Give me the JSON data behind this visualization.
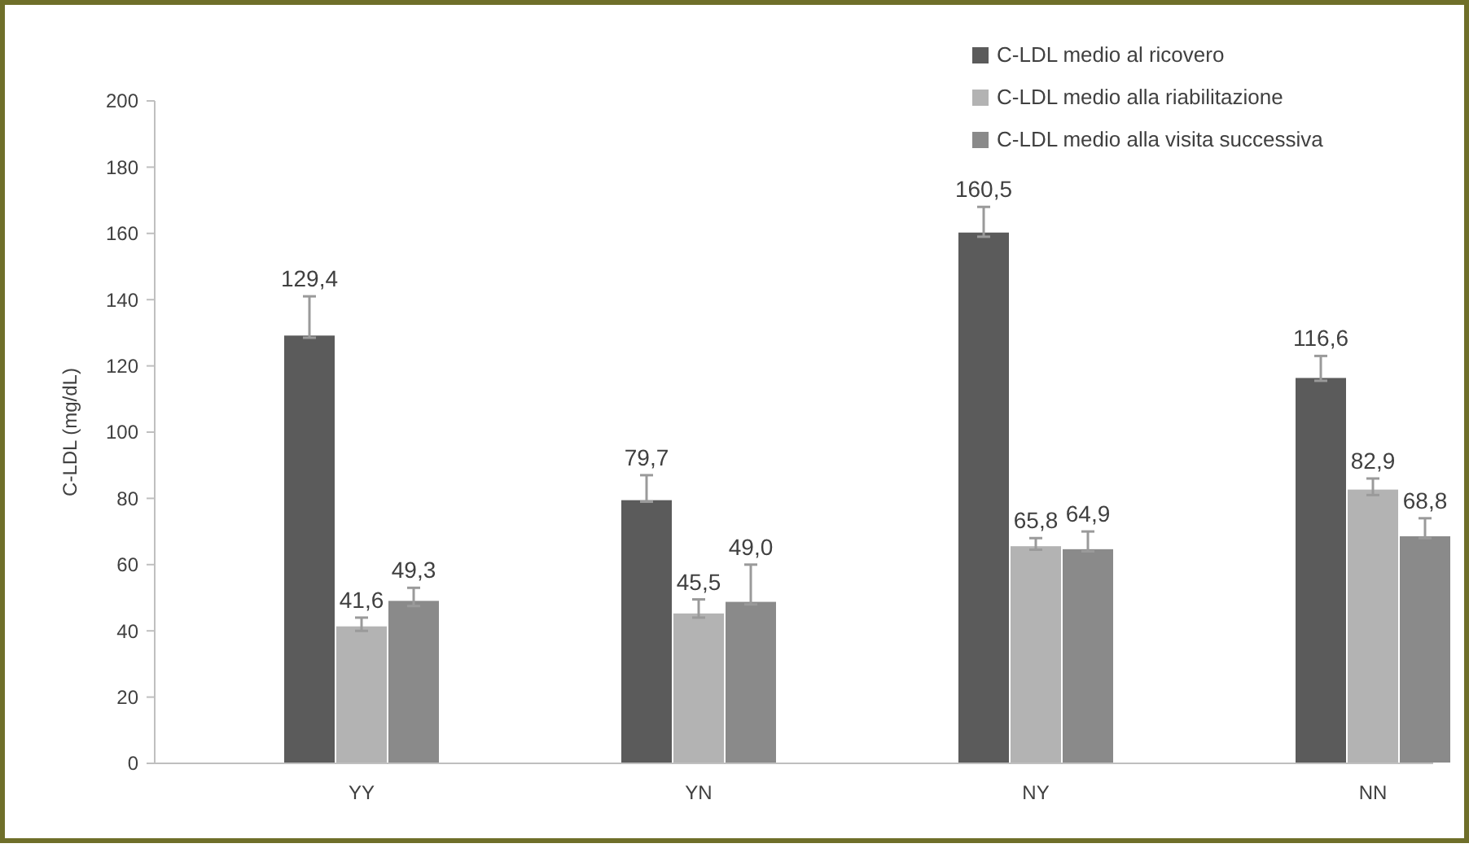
{
  "chart_data": {
    "type": "bar",
    "ylabel": "C-LDL (mg/dL)",
    "categories": [
      "YY",
      "YN",
      "NY",
      "NN"
    ],
    "ylim": [
      0,
      200
    ],
    "yticks": [
      0,
      20,
      40,
      60,
      80,
      100,
      120,
      140,
      160,
      180,
      200
    ],
    "grid": false,
    "legend": "top right",
    "series": [
      {
        "name": "C-LDL medio al ricovero",
        "color": "#5b5b5b",
        "values": [
          129.4,
          79.7,
          160.5,
          116.6
        ],
        "value_labels": [
          "129,4",
          "79,7",
          "160,5",
          "116,6"
        ],
        "errors": [
          [
            128.5,
            141
          ],
          [
            79,
            87
          ],
          [
            159,
            168
          ],
          [
            115.5,
            123
          ]
        ]
      },
      {
        "name": "C-LDL medio alla riabilitazione",
        "color": "#b3b3b3",
        "values": [
          41.6,
          45.5,
          65.8,
          82.9
        ],
        "value_labels": [
          "41,6",
          "45,5",
          "65,8",
          "82,9"
        ],
        "errors": [
          [
            40,
            44
          ],
          [
            44,
            49.5
          ],
          [
            64.5,
            68
          ],
          [
            81,
            86
          ]
        ]
      },
      {
        "name": "C-LDL medio alla visita successiva",
        "color": "#8a8a8a",
        "values": [
          49.3,
          49.0,
          64.9,
          68.8
        ],
        "value_labels": [
          "49,3",
          "49,0",
          "64,9",
          "68,8"
        ],
        "errors": [
          [
            47.5,
            53
          ],
          [
            48,
            60
          ],
          [
            64,
            70
          ],
          [
            68,
            74
          ]
        ]
      }
    ]
  }
}
